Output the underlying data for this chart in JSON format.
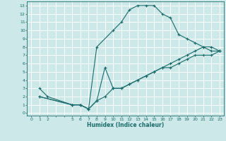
{
  "xlabel": "Humidex (Indice chaleur)",
  "bg_color": "#cce8e8",
  "grid_color": "#ffffff",
  "line_color": "#1a6b6b",
  "xlim": [
    -0.5,
    23.5
  ],
  "ylim": [
    -0.3,
    13.5
  ],
  "xticks_all": [
    0,
    1,
    2,
    3,
    4,
    5,
    6,
    7,
    8,
    9,
    10,
    11,
    12,
    13,
    14,
    15,
    16,
    17,
    18,
    19,
    20,
    21,
    22,
    23
  ],
  "xtick_labels": [
    "0",
    "1",
    "2",
    "",
    "",
    "5",
    "6",
    "7",
    "8",
    "9",
    "10",
    "11",
    "12",
    "13",
    "14",
    "15",
    "16",
    "17",
    "18",
    "19",
    "20",
    "21",
    "22",
    "23"
  ],
  "yticks": [
    0,
    1,
    2,
    3,
    4,
    5,
    6,
    7,
    8,
    9,
    10,
    11,
    12,
    13
  ],
  "curve1_x": [
    1,
    2,
    5,
    6,
    7,
    8,
    10,
    11,
    12,
    13,
    14,
    15,
    16,
    17,
    18,
    19,
    20,
    21,
    22,
    23
  ],
  "curve1_y": [
    3,
    2,
    1,
    1,
    0.5,
    8,
    10,
    11,
    12.5,
    13,
    13,
    13,
    12,
    11.5,
    9.5,
    9,
    8.5,
    8,
    7.5,
    7.5
  ],
  "curve2_x": [
    1,
    5,
    6,
    7,
    8,
    9,
    10,
    11,
    12,
    13,
    14,
    15,
    16,
    17,
    18,
    19,
    20,
    21,
    22,
    23
  ],
  "curve2_y": [
    2,
    1,
    1,
    0.5,
    1.5,
    5.5,
    3,
    3,
    3.5,
    4,
    4.5,
    5,
    5.5,
    6,
    6.5,
    7,
    7.5,
    8,
    8,
    7.5
  ],
  "curve3_x": [
    1,
    5,
    6,
    7,
    8,
    9,
    10,
    11,
    12,
    13,
    14,
    15,
    16,
    17,
    18,
    19,
    20,
    21,
    22,
    23
  ],
  "curve3_y": [
    2,
    1,
    1,
    0.5,
    1.5,
    2,
    3,
    3,
    3.5,
    4,
    4.5,
    5,
    5.5,
    5.5,
    6,
    6.5,
    7,
    7,
    7,
    7.5
  ]
}
